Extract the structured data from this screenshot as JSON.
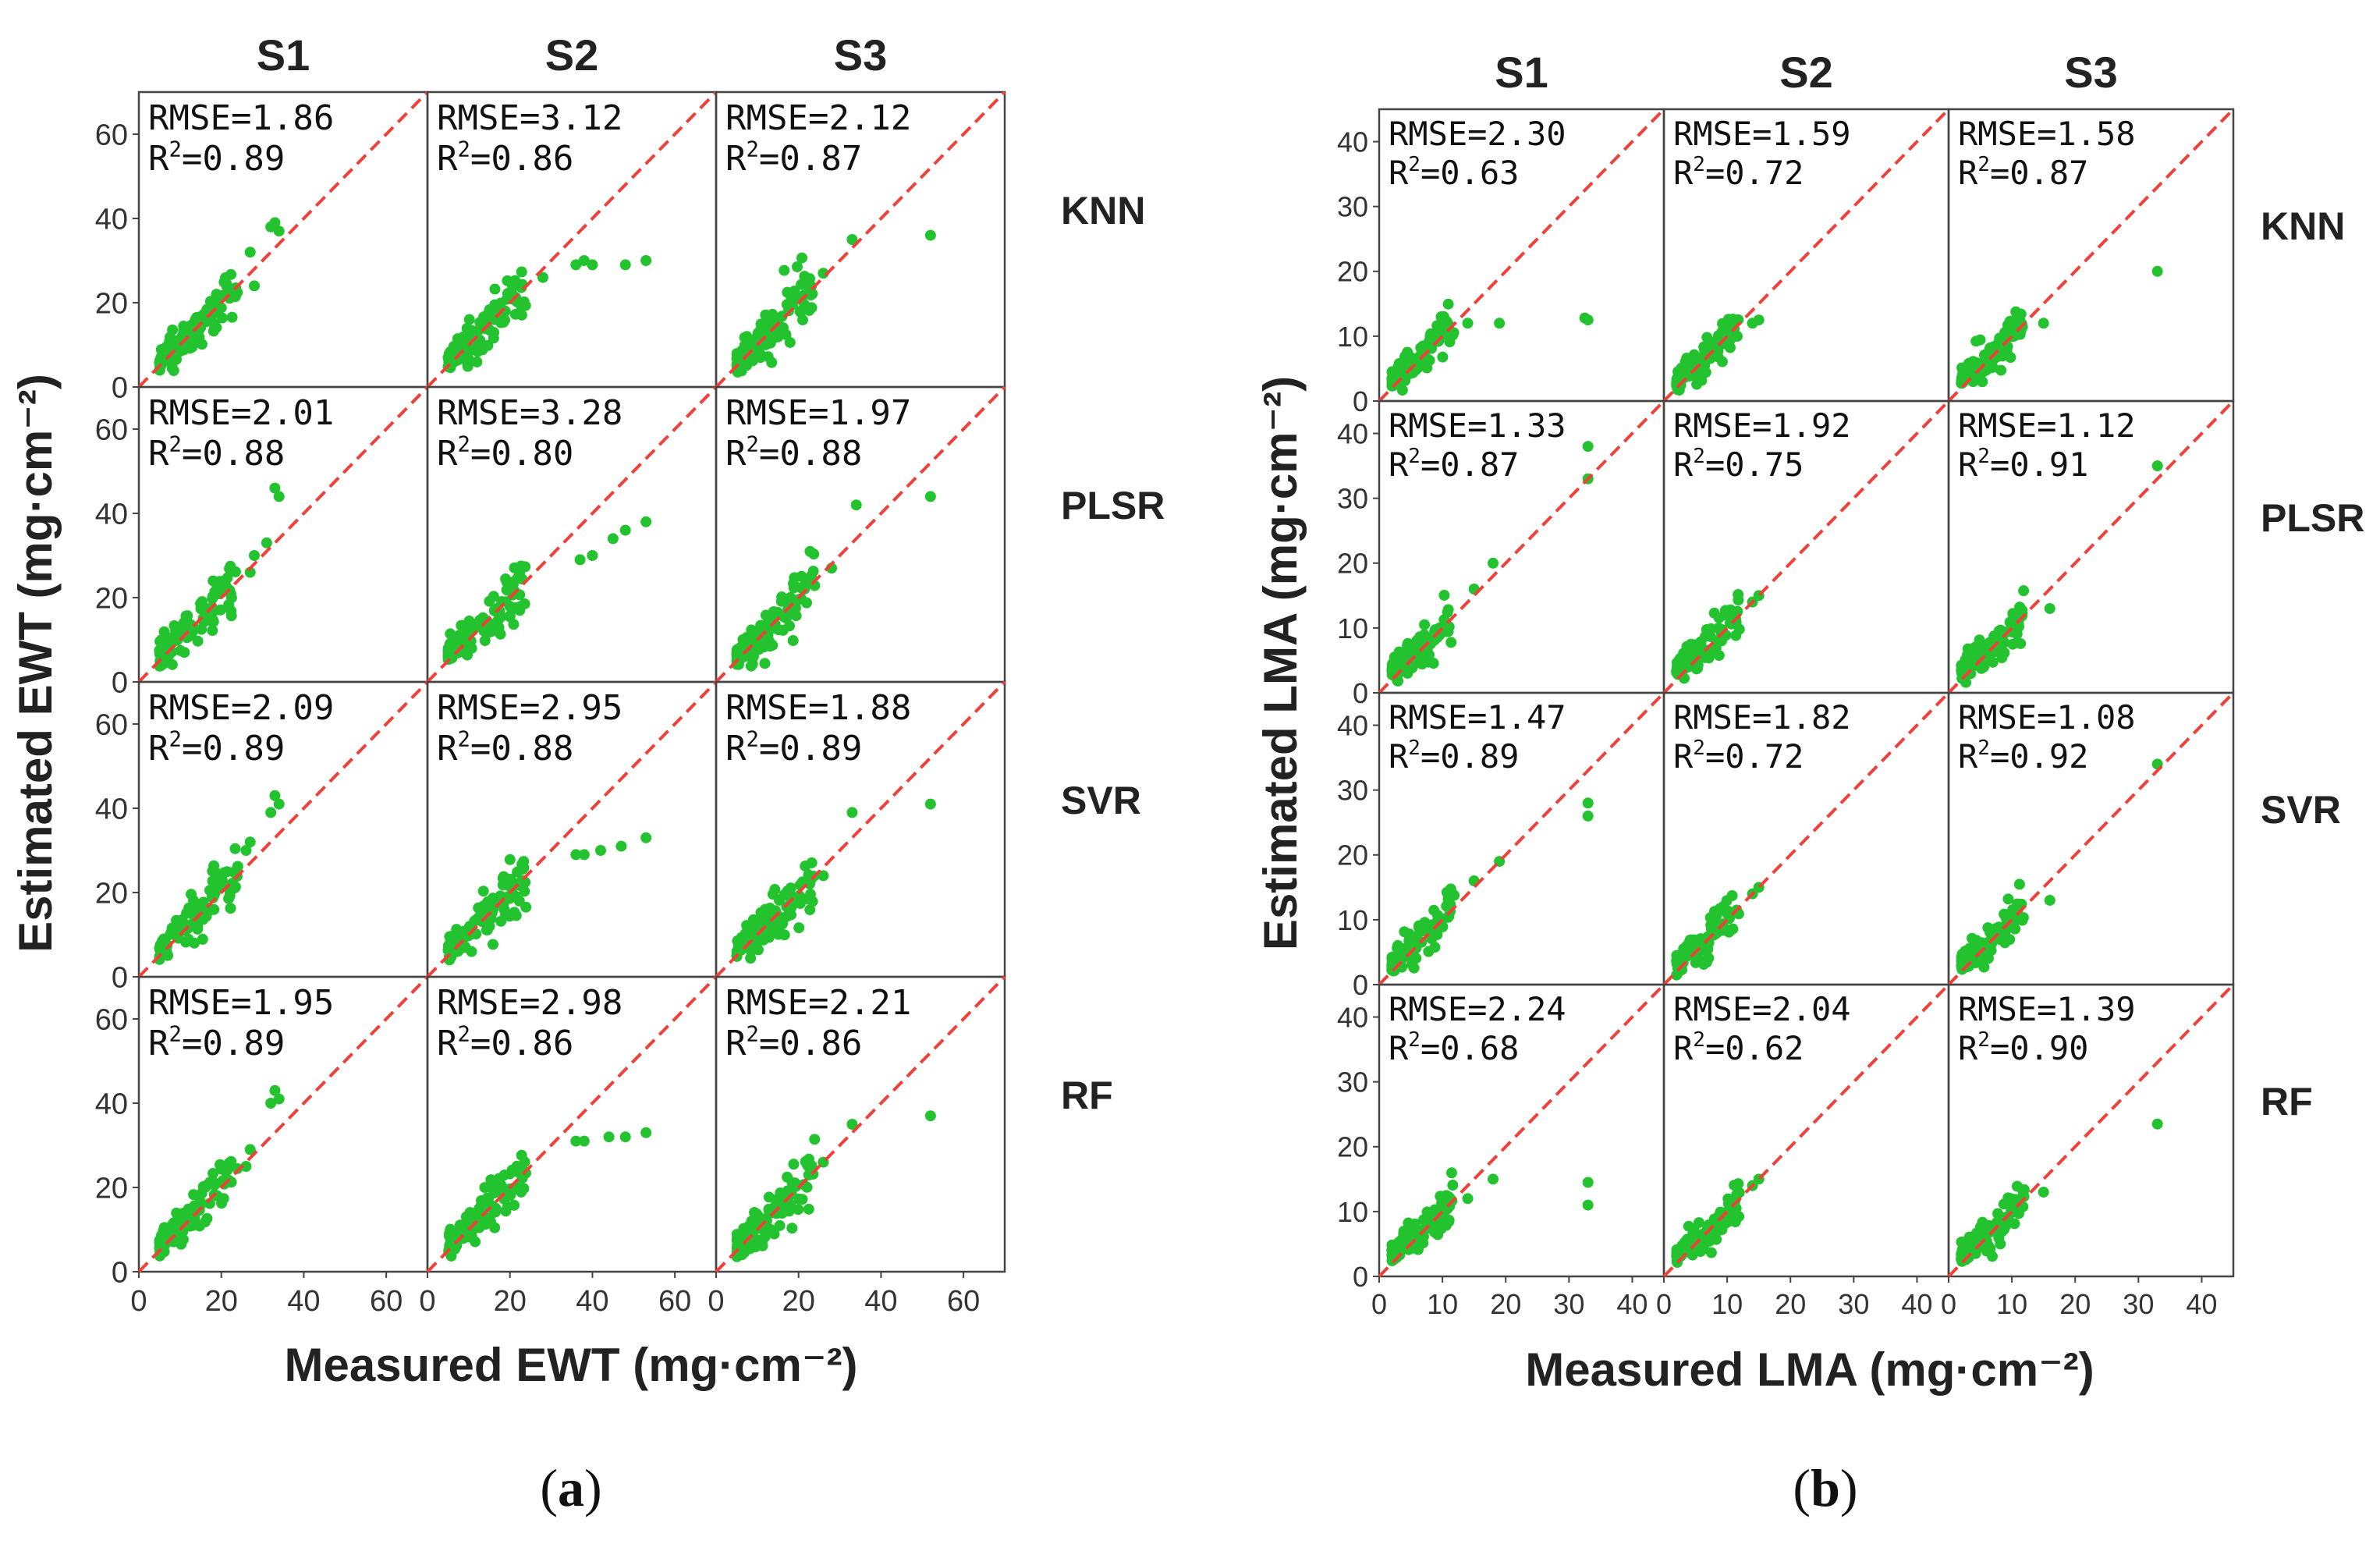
{
  "chart_data": [
    {
      "type": "scatter",
      "figure_label": "(a)",
      "panel_letter": "a",
      "xlabel": "Measured EWT (mg·cm⁻²)",
      "ylabel": "Estimated EWT (mg·cm⁻²)",
      "xlim": [
        0,
        70
      ],
      "ylim": [
        0,
        70
      ],
      "xticks": [
        0,
        20,
        40,
        60
      ],
      "yticks": [
        0,
        20,
        40,
        60
      ],
      "columns": [
        "S1",
        "S2",
        "S3"
      ],
      "rows": [
        "KNN",
        "PLSR",
        "SVR",
        "RF"
      ],
      "reference_line": "1:1",
      "point_color": "#22c32e",
      "line_color": "#f0403a",
      "stats": [
        [
          {
            "rmse": "RMSE=1.86",
            "r2": "=0.89"
          },
          {
            "rmse": "RMSE=3.12",
            "r2": "=0.86"
          },
          {
            "rmse": "RMSE=2.12",
            "r2": "=0.87"
          }
        ],
        [
          {
            "rmse": "RMSE=2.01",
            "r2": "=0.88"
          },
          {
            "rmse": "RMSE=3.28",
            "r2": "=0.80"
          },
          {
            "rmse": "RMSE=1.97",
            "r2": "=0.88"
          }
        ],
        [
          {
            "rmse": "RMSE=2.09",
            "r2": "=0.89"
          },
          {
            "rmse": "RMSE=2.95",
            "r2": "=0.88"
          },
          {
            "rmse": "RMSE=1.88",
            "r2": "=0.89"
          }
        ],
        [
          {
            "rmse": "RMSE=1.95",
            "r2": "=0.89"
          },
          {
            "rmse": "RMSE=2.98",
            "r2": "=0.86"
          },
          {
            "rmse": "RMSE=2.21",
            "r2": "=0.86"
          }
        ]
      ],
      "outliers": [
        [
          [
            [
              32,
              38
            ],
            [
              33,
              39
            ],
            [
              34,
              37
            ],
            [
              27,
              32
            ],
            [
              28,
              24
            ]
          ],
          [
            [
              36,
              29
            ],
            [
              40,
              29
            ],
            [
              48,
              29
            ],
            [
              53,
              30
            ],
            [
              38,
              30
            ],
            [
              28,
              26
            ]
          ],
          [
            [
              52,
              36
            ],
            [
              33,
              35
            ],
            [
              26,
              27
            ]
          ]
        ],
        [
          [
            [
              33,
              46
            ],
            [
              34,
              44
            ],
            [
              28,
              30
            ],
            [
              27,
              26
            ],
            [
              31,
              33
            ]
          ],
          [
            [
              53,
              38
            ],
            [
              45,
              34
            ],
            [
              40,
              30
            ],
            [
              37,
              29
            ],
            [
              48,
              36
            ]
          ],
          [
            [
              52,
              44
            ],
            [
              34,
              42
            ],
            [
              28,
              27
            ]
          ]
        ],
        [
          [
            [
              33,
              43
            ],
            [
              34,
              41
            ],
            [
              32,
              39
            ],
            [
              27,
              32
            ],
            [
              26,
              30
            ]
          ],
          [
            [
              53,
              33
            ],
            [
              42,
              30
            ],
            [
              38,
              29
            ],
            [
              36,
              29
            ],
            [
              47,
              31
            ]
          ],
          [
            [
              52,
              41
            ],
            [
              33,
              39
            ],
            [
              26,
              24
            ]
          ]
        ],
        [
          [
            [
              33,
              43
            ],
            [
              34,
              41
            ],
            [
              32,
              40
            ],
            [
              27,
              29
            ],
            [
              26,
              25
            ]
          ],
          [
            [
              53,
              33
            ],
            [
              44,
              32
            ],
            [
              38,
              31
            ],
            [
              36,
              31
            ],
            [
              48,
              32
            ]
          ],
          [
            [
              52,
              37
            ],
            [
              33,
              35
            ],
            [
              26,
              26
            ]
          ]
        ]
      ]
    },
    {
      "type": "scatter",
      "figure_label": "(b)",
      "panel_letter": "b",
      "xlabel": "Measured LMA (mg·cm⁻²)",
      "ylabel": "Estimated LMA (mg·cm⁻²)",
      "xlim": [
        0,
        45
      ],
      "ylim": [
        0,
        45
      ],
      "xticks": [
        0,
        10,
        20,
        30,
        40
      ],
      "yticks": [
        0,
        10,
        20,
        30,
        40
      ],
      "columns": [
        "S1",
        "S2",
        "S3"
      ],
      "rows": [
        "KNN",
        "PLSR",
        "SVR",
        "RF"
      ],
      "reference_line": "1:1",
      "point_color": "#22c32e",
      "line_color": "#f0403a",
      "stats": [
        [
          {
            "rmse": "RMSE=2.30",
            "r2": "=0.63"
          },
          {
            "rmse": "RMSE=1.59",
            "r2": "=0.72"
          },
          {
            "rmse": "RMSE=1.58",
            "r2": "=0.87"
          }
        ],
        [
          {
            "rmse": "RMSE=1.33",
            "r2": "=0.87"
          },
          {
            "rmse": "RMSE=1.92",
            "r2": "=0.75"
          },
          {
            "rmse": "RMSE=1.12",
            "r2": "=0.91"
          }
        ],
        [
          {
            "rmse": "RMSE=1.47",
            "r2": "=0.89"
          },
          {
            "rmse": "RMSE=1.82",
            "r2": "=0.72"
          },
          {
            "rmse": "RMSE=1.08",
            "r2": "=0.92"
          }
        ],
        [
          {
            "rmse": "RMSE=2.24",
            "r2": "=0.68"
          },
          {
            "rmse": "RMSE=2.04",
            "r2": "=0.62"
          },
          {
            "rmse": "RMSE=1.39",
            "r2": "=0.90"
          }
        ]
      ],
      "outliers": [
        [
          [
            [
              33,
              12.5
            ],
            [
              32.5,
              12.8
            ],
            [
              19,
              12
            ],
            [
              14,
              12
            ]
          ],
          [
            [
              15,
              12.5
            ],
            [
              14,
              12
            ]
          ],
          [
            [
              33,
              20
            ],
            [
              15,
              12
            ]
          ]
        ],
        [
          [
            [
              33,
              38
            ],
            [
              33,
              33
            ],
            [
              18,
              20
            ],
            [
              15,
              16
            ]
          ],
          [
            [
              15,
              15
            ],
            [
              14,
              14
            ]
          ],
          [
            [
              33,
              35
            ],
            [
              16,
              13
            ]
          ]
        ],
        [
          [
            [
              33,
              28
            ],
            [
              33,
              26
            ],
            [
              19,
              19
            ],
            [
              15,
              16
            ]
          ],
          [
            [
              15,
              15
            ],
            [
              14,
              14
            ]
          ],
          [
            [
              33,
              34
            ],
            [
              16,
              13
            ]
          ]
        ],
        [
          [
            [
              33,
              14.5
            ],
            [
              33,
              11
            ],
            [
              18,
              15
            ],
            [
              14,
              12
            ]
          ],
          [
            [
              15,
              15
            ],
            [
              14,
              14
            ]
          ],
          [
            [
              33,
              23.5
            ],
            [
              15,
              13
            ]
          ]
        ]
      ]
    }
  ]
}
